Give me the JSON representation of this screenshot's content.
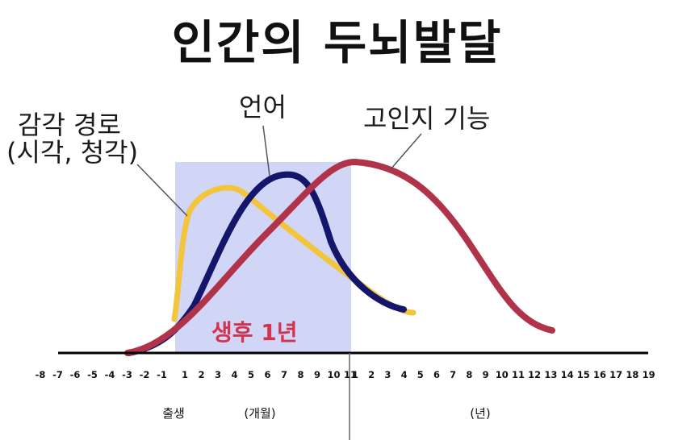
{
  "title": "인간의 두뇌발달",
  "labels": {
    "sensory_line1": "감각 경로",
    "sensory_line2": "(시각, 청각)",
    "language": "언어",
    "cognition": "고인지 기능",
    "first_year": "생후 1년"
  },
  "axis": {
    "prenatal_ticks": [
      "-8",
      "-7",
      "-6",
      "-5",
      "-4",
      "-3",
      "-2",
      "-1"
    ],
    "month_ticks": [
      "1",
      "2",
      "3",
      "4",
      "5",
      "6",
      "7",
      "8",
      "9",
      "10",
      "11"
    ],
    "year_ticks": [
      "1",
      "2",
      "3",
      "4",
      "5",
      "6",
      "7",
      "8",
      "9",
      "10",
      "11",
      "12",
      "13",
      "14",
      "15",
      "16",
      "17",
      "18",
      "19"
    ],
    "birth_label": "출생",
    "month_label": "(개월)",
    "year_label": "(년)"
  },
  "colors": {
    "sensory": "#f2c53d",
    "language": "#14166b",
    "cognition": "#b0334a",
    "highlight": "#c9cff5",
    "first_year_text": "#d2334f"
  }
}
